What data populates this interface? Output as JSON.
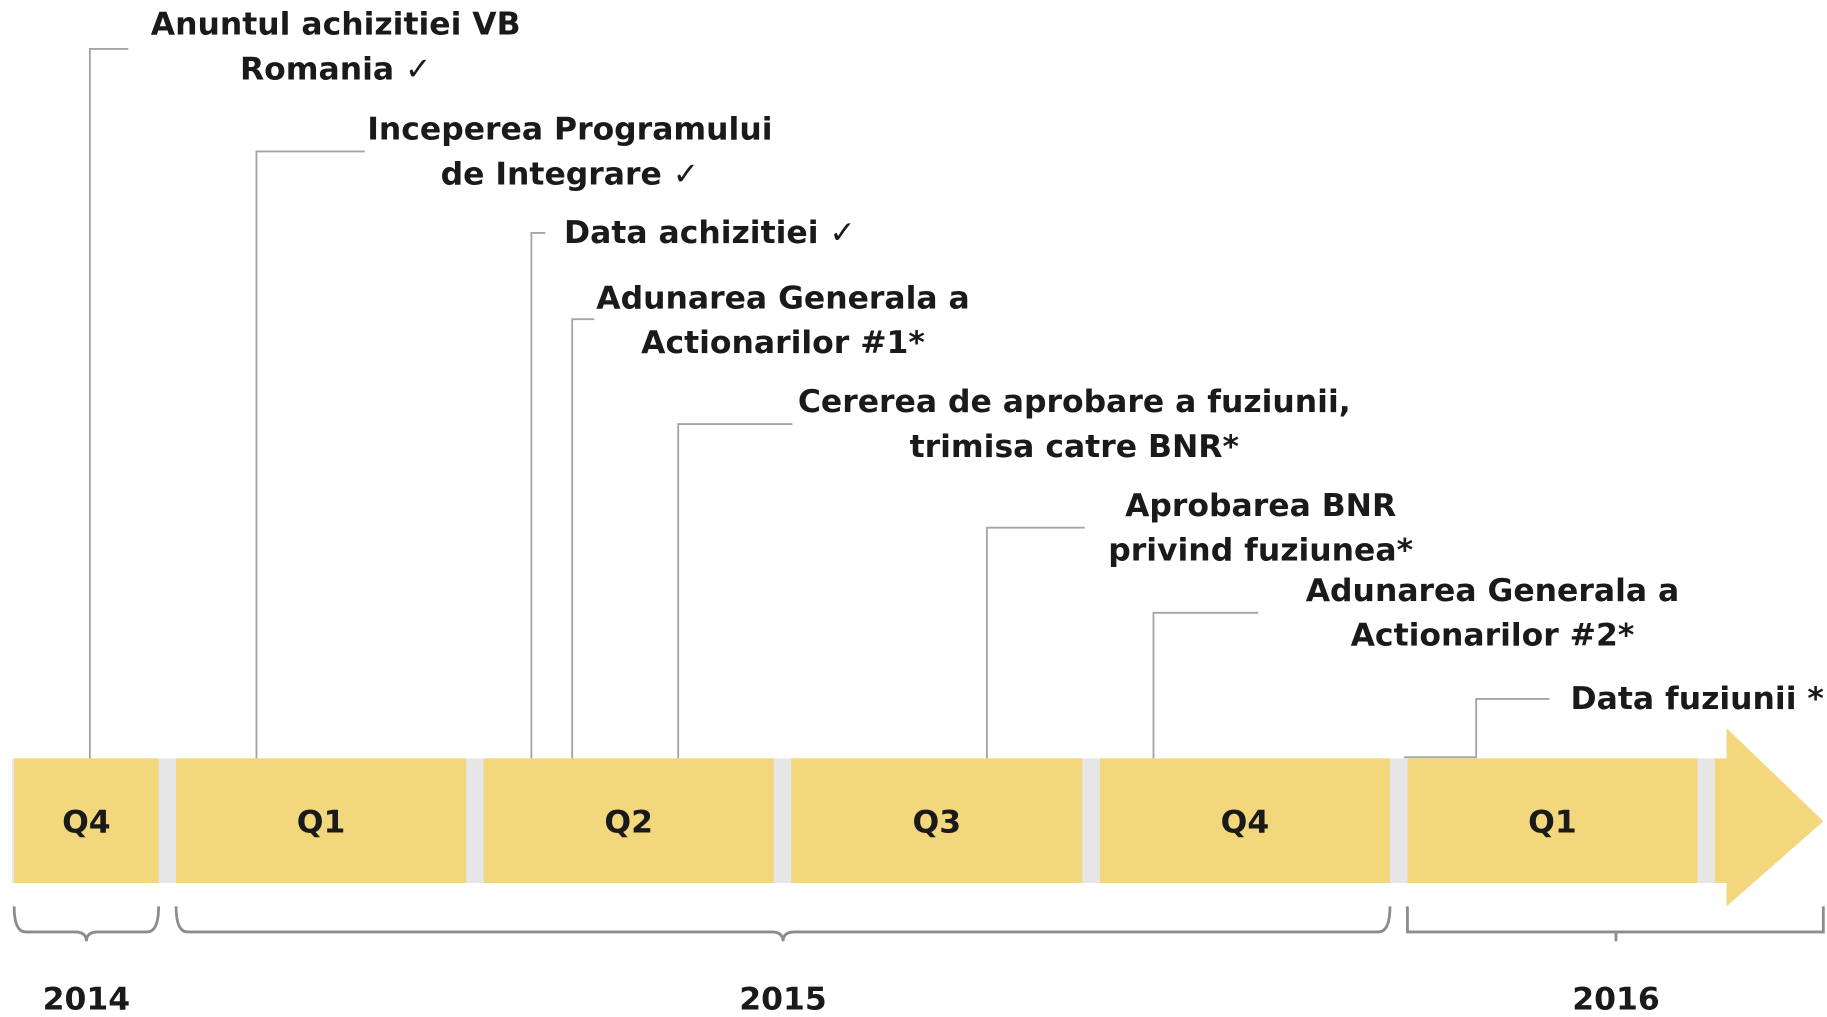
{
  "events": [
    {
      "lines": [
        "Anuntul achizitiei VB",
        "Romania ✓"
      ]
    },
    {
      "lines": [
        "Inceperea Programului",
        "de Integrare ✓"
      ]
    },
    {
      "lines": [
        "Data achizitiei ✓"
      ]
    },
    {
      "lines": [
        "Adunarea Generala a",
        "Actionarilor #1*"
      ]
    },
    {
      "lines": [
        "Cererea de aprobare a fuziunii,",
        "trimisa catre BNR*"
      ]
    },
    {
      "lines": [
        "Aprobarea BNR",
        "privind fuziunea*"
      ]
    },
    {
      "lines": [
        "Adunarea Generala a",
        "Actionarilor #2*"
      ]
    },
    {
      "lines": [
        "Data fuziunii *"
      ]
    }
  ],
  "quarters": [
    "Q4",
    "Q1",
    "Q2",
    "Q3",
    "Q4",
    "Q1"
  ],
  "years": [
    "2014",
    "2015",
    "2016"
  ]
}
